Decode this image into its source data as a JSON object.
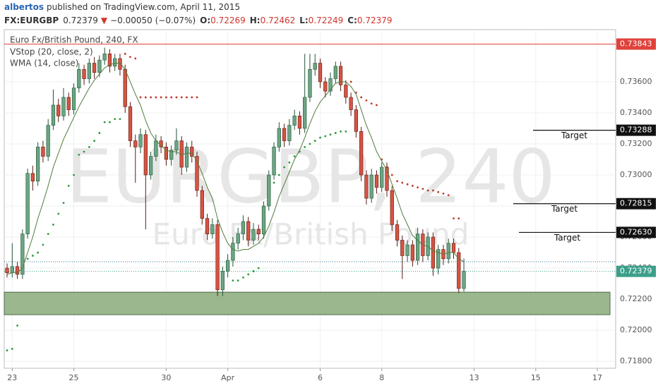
{
  "header": {
    "author": "albertos",
    "published": "published on TradingView.com, April 11, 2015",
    "symbol": "FX:EURGBP",
    "last": "0.72379",
    "arrow": "▼",
    "change": "−0.00050 (−0.07%)",
    "ohlc": [
      {
        "key": "O:",
        "value": "0.72269"
      },
      {
        "key": "H:",
        "value": "0.72462"
      },
      {
        "key": "L:",
        "value": "0.72249"
      },
      {
        "key": "C:",
        "value": "0.72379"
      }
    ]
  },
  "chart_data": {
    "type": "candlestick",
    "title": "Euro Fx/British Pound, 240, FX",
    "watermark": {
      "symbol": "EURGBP, 240",
      "description": "Euro Fx/British Pound"
    },
    "up_color": "#6ba583",
    "down_color": "#d75442",
    "grid": true,
    "ylim": [
      0.71755,
      0.73936
    ],
    "yticks": [
      {
        "value": 0.718,
        "label": "0.71800"
      },
      {
        "value": 0.72,
        "label": "0.72000"
      },
      {
        "value": 0.722,
        "label": "0.72200"
      },
      {
        "value": 0.724,
        "label": "0.72400"
      },
      {
        "value": 0.726,
        "label": "0.72600"
      },
      {
        "value": 0.728,
        "label": "0.72800"
      },
      {
        "value": 0.73,
        "label": "0.73000"
      },
      {
        "value": 0.732,
        "label": "0.73200"
      },
      {
        "value": 0.734,
        "label": "0.73400"
      },
      {
        "value": 0.736,
        "label": "0.73600"
      }
    ],
    "categories": [
      null,
      "23",
      null,
      null,
      null,
      null,
      null,
      null,
      null,
      null,
      null,
      null,
      null,
      "25",
      null,
      null,
      null,
      null,
      null,
      null,
      null,
      null,
      null,
      null,
      null,
      null,
      null,
      null,
      null,
      null,
      null,
      "30",
      null,
      null,
      null,
      null,
      null,
      null,
      null,
      null,
      null,
      null,
      null,
      "Apr",
      null,
      null,
      null,
      null,
      null,
      null,
      null,
      null,
      null,
      null,
      null,
      null,
      null,
      null,
      null,
      null,
      null,
      "6",
      null,
      null,
      null,
      null,
      null,
      null,
      null,
      null,
      null,
      null,
      null,
      "8",
      null,
      null,
      null,
      null,
      null,
      null,
      null,
      null,
      null,
      null,
      null,
      null,
      null,
      null,
      null,
      null,
      null,
      "13",
      null,
      null,
      null,
      null,
      null,
      null,
      null,
      null,
      null,
      null,
      null,
      "15",
      null,
      null,
      null,
      null,
      null,
      null,
      null,
      null,
      null,
      null,
      null,
      "17",
      null,
      null,
      null
    ],
    "open": [
      0.724,
      0.7237,
      0.7241,
      0.7236,
      0.7262,
      0.7301,
      0.7296,
      0.7318,
      0.7312,
      0.7332,
      0.7345,
      0.7338,
      0.735,
      0.7342,
      0.7356,
      0.7368,
      0.7362,
      0.7372,
      0.7366,
      0.7374,
      0.7378,
      0.737,
      0.7375,
      0.7368,
      0.7344,
      0.7322,
      0.7318,
      0.7326,
      0.73,
      0.7312,
      0.7322,
      0.7318,
      0.731,
      0.7316,
      0.7322,
      0.7305,
      0.7318,
      0.7312,
      0.729,
      0.7272,
      0.7262,
      0.7268,
      0.7226,
      0.7238,
      0.7245,
      0.7256,
      0.7262,
      0.727,
      0.7258,
      0.7265,
      0.7262,
      0.728,
      0.73,
      0.7318,
      0.733,
      0.7322,
      0.7332,
      0.7338,
      0.733,
      0.735,
      0.7368,
      0.7372,
      0.736,
      0.7354,
      0.7362,
      0.737,
      0.7358,
      0.735,
      0.7342,
      0.7328,
      0.73,
      0.7285,
      0.73,
      0.7292,
      0.7305,
      0.729,
      0.7268,
      0.7258,
      0.7248,
      0.7255,
      0.7245,
      0.7262,
      0.7248,
      0.726,
      0.724,
      0.7252,
      0.7246,
      0.7256,
      0.725,
      0.72269,
      null,
      null,
      null,
      null,
      null,
      null,
      null,
      null,
      null,
      null,
      null,
      null,
      null,
      null,
      null,
      null,
      null,
      null,
      null,
      null,
      null,
      null,
      null,
      null,
      null,
      null,
      null,
      null,
      null
    ],
    "high": [
      0.7243,
      0.7256,
      0.7244,
      0.7265,
      0.7304,
      0.7306,
      0.7321,
      0.7322,
      0.7336,
      0.7355,
      0.7349,
      0.7356,
      0.7353,
      0.7359,
      0.7372,
      0.7371,
      0.7375,
      0.7376,
      0.7377,
      0.7382,
      0.7381,
      0.7378,
      0.7378,
      0.7371,
      0.7347,
      0.7326,
      0.733,
      0.7329,
      0.7315,
      0.7326,
      0.7325,
      0.7321,
      0.7319,
      0.733,
      0.7325,
      0.7321,
      0.7322,
      0.7315,
      0.7293,
      0.7275,
      0.7272,
      0.7271,
      0.7241,
      0.7249,
      0.726,
      0.7266,
      0.7274,
      0.7273,
      0.7269,
      0.7268,
      0.7283,
      0.7303,
      0.7321,
      0.7334,
      0.7333,
      0.7336,
      0.7342,
      0.7341,
      0.7378,
      0.7378,
      0.7378,
      0.7375,
      0.7363,
      0.7366,
      0.7373,
      0.7373,
      0.7361,
      0.7353,
      0.7345,
      0.7331,
      0.7303,
      0.7304,
      0.7303,
      0.7308,
      0.7308,
      0.7293,
      0.7271,
      0.7261,
      0.7258,
      0.7258,
      0.7266,
      0.7265,
      0.7263,
      0.7263,
      0.7255,
      0.7255,
      0.7259,
      0.7259,
      0.7253,
      0.72462,
      null,
      null,
      null,
      null,
      null,
      null,
      null,
      null,
      null,
      null,
      null,
      null,
      null,
      null,
      null,
      null,
      null,
      null,
      null,
      null,
      null,
      null,
      null,
      null,
      null,
      null,
      null,
      null,
      null
    ],
    "low": [
      0.7234,
      0.7234,
      0.7233,
      0.7233,
      0.7259,
      0.729,
      0.7293,
      0.7308,
      0.7309,
      0.7329,
      0.7334,
      0.7335,
      0.7338,
      0.7339,
      0.7353,
      0.7358,
      0.7359,
      0.7362,
      0.7363,
      0.7371,
      0.7366,
      0.7367,
      0.7364,
      0.734,
      0.7318,
      0.7295,
      0.7314,
      0.7265,
      0.7297,
      0.7309,
      0.7314,
      0.7306,
      0.7306,
      0.7313,
      0.73,
      0.7302,
      0.7308,
      0.7286,
      0.7268,
      0.7258,
      0.7259,
      0.7222,
      0.7222,
      0.7234,
      0.7241,
      0.7252,
      0.7258,
      0.7254,
      0.7255,
      0.7258,
      0.7259,
      0.7277,
      0.7297,
      0.7315,
      0.7318,
      0.7319,
      0.7329,
      0.7326,
      0.7327,
      0.7347,
      0.7364,
      0.7356,
      0.735,
      0.7351,
      0.7359,
      0.7354,
      0.7346,
      0.7338,
      0.7324,
      0.7296,
      0.7281,
      0.7282,
      0.7288,
      0.7289,
      0.7286,
      0.7264,
      0.7254,
      0.7233,
      0.7244,
      0.7241,
      0.7242,
      0.7244,
      0.7245,
      0.7235,
      0.7236,
      0.7242,
      0.7243,
      0.7246,
      0.7224,
      0.72249,
      null,
      null,
      null,
      null,
      null,
      null,
      null,
      null,
      null,
      null,
      null,
      null,
      null,
      null,
      null,
      null,
      null,
      null,
      null,
      null,
      null,
      null,
      null,
      null,
      null,
      null,
      null,
      null,
      null
    ],
    "close": [
      0.7237,
      0.7241,
      0.7236,
      0.7262,
      0.7301,
      0.7296,
      0.7318,
      0.7312,
      0.7332,
      0.7345,
      0.7338,
      0.735,
      0.7342,
      0.7356,
      0.7368,
      0.7362,
      0.7372,
      0.7366,
      0.7374,
      0.7378,
      0.737,
      0.7375,
      0.7368,
      0.7344,
      0.7322,
      0.7318,
      0.7326,
      0.73,
      0.7312,
      0.7322,
      0.7318,
      0.731,
      0.7316,
      0.7322,
      0.7305,
      0.7318,
      0.7312,
      0.729,
      0.7272,
      0.7262,
      0.7268,
      0.7226,
      0.7238,
      0.7245,
      0.7256,
      0.7262,
      0.727,
      0.7258,
      0.7265,
      0.7262,
      0.728,
      0.73,
      0.7318,
      0.733,
      0.7322,
      0.7332,
      0.7338,
      0.733,
      0.735,
      0.7368,
      0.7372,
      0.736,
      0.7354,
      0.7362,
      0.737,
      0.7358,
      0.735,
      0.7342,
      0.7328,
      0.73,
      0.7285,
      0.73,
      0.7292,
      0.7305,
      0.729,
      0.7268,
      0.7258,
      0.7248,
      0.7255,
      0.7245,
      0.7262,
      0.7248,
      0.726,
      0.724,
      0.7252,
      0.7246,
      0.7256,
      0.725,
      0.72269,
      0.72379,
      null,
      null,
      null,
      null,
      null,
      null,
      null,
      null,
      null,
      null,
      null,
      null,
      null,
      null,
      null,
      null,
      null,
      null,
      null,
      null,
      null,
      null,
      null,
      null,
      null,
      null,
      null,
      null,
      null
    ],
    "wma": {
      "name": "WMA (14, close)",
      "color": "#4f7d3a",
      "values": [
        0.7236,
        0.7237,
        0.7237,
        0.724,
        0.725,
        0.726,
        0.7272,
        0.7282,
        0.7293,
        0.7305,
        0.7314,
        0.7323,
        0.733,
        0.7337,
        0.7344,
        0.735,
        0.7356,
        0.7361,
        0.7365,
        0.7369,
        0.7371,
        0.7372,
        0.7372,
        0.7368,
        0.736,
        0.7352,
        0.7345,
        0.7335,
        0.7327,
        0.7322,
        0.7319,
        0.7316,
        0.7315,
        0.7315,
        0.7313,
        0.7314,
        0.7314,
        0.7309,
        0.7301,
        0.7292,
        0.7285,
        0.7272,
        0.7263,
        0.7256,
        0.7252,
        0.7251,
        0.7252,
        0.7252,
        0.7254,
        0.7256,
        0.726,
        0.7267,
        0.7276,
        0.7286,
        0.7294,
        0.7302,
        0.731,
        0.7316,
        0.7324,
        0.7333,
        0.7341,
        0.7347,
        0.7351,
        0.7355,
        0.7359,
        0.736,
        0.736,
        0.7357,
        0.7352,
        0.7342,
        0.7332,
        0.7324,
        0.7315,
        0.7309,
        0.7303,
        0.7294,
        0.7285,
        0.7275,
        0.7268,
        0.7261,
        0.7258,
        0.7255,
        0.7254,
        0.7251,
        0.725,
        0.7249,
        0.725,
        0.725,
        0.7246,
        0.7244,
        null,
        null,
        null,
        null,
        null,
        null,
        null,
        null,
        null,
        null,
        null,
        null,
        null,
        null,
        null,
        null,
        null,
        null,
        null,
        null,
        null,
        null,
        null,
        null,
        null,
        null,
        null,
        null,
        null
      ]
    },
    "vstop": {
      "name": "VStop (20, close, 2)",
      "up_color": "#2e9b3a",
      "down_color": "#c0392b",
      "values": [
        0.7187,
        0.7188,
        0.7203,
        null,
        0.7246,
        0.7248,
        0.725,
        0.7255,
        0.7262,
        0.7268,
        0.7275,
        0.7282,
        0.7293,
        0.73,
        0.7313,
        0.7315,
        0.7318,
        0.7322,
        0.7327,
        0.7334,
        0.7334,
        0.7336,
        0.7336,
        0.7378,
        0.7376,
        0.7375,
        0.735,
        0.735,
        0.735,
        0.735,
        0.735,
        0.735,
        0.735,
        0.735,
        0.735,
        0.735,
        0.735,
        0.735,
        null,
        null,
        null,
        null,
        null,
        null,
        0.7232,
        0.7232,
        0.7234,
        0.7236,
        0.7238,
        0.724,
        null,
        0.729,
        0.7295,
        0.73,
        0.7305,
        0.7308,
        0.7312,
        0.7315,
        0.7318,
        0.732,
        0.7322,
        0.7324,
        0.7325,
        0.7326,
        0.7327,
        0.7328,
        0.7328,
        0.736,
        0.7353,
        0.735,
        0.7348,
        0.7346,
        0.7345,
        0.731,
        0.7305,
        0.73,
        0.7296,
        0.7295,
        0.7294,
        0.7293,
        0.7292,
        0.7291,
        0.729,
        0.729,
        0.7289,
        0.7288,
        0.7287,
        0.7272,
        0.7272,
        null,
        null,
        null,
        null,
        null,
        null,
        null,
        null,
        null,
        null,
        null,
        null,
        null,
        null,
        null,
        null,
        null,
        null,
        null,
        null,
        null,
        null,
        null,
        null,
        null,
        null,
        null,
        null,
        null,
        null
      ]
    },
    "support_zone": {
      "low": 0.721,
      "high": 0.72245,
      "color": "#8faf82"
    },
    "price_lines": [
      {
        "value": 0.73843,
        "label": "0.73843",
        "color": "#e0413a",
        "style": "solid"
      },
      {
        "value": 0.72441,
        "color": "#2f6f8f",
        "style": "dotted"
      },
      {
        "value": 0.72379,
        "label": "0.72379",
        "color": "#3c9f8a",
        "style": "dotted"
      }
    ],
    "targets": [
      {
        "value": 0.73288,
        "label": "0.73288",
        "text": "Target"
      },
      {
        "value": 0.72815,
        "label": "0.72815",
        "text": "Target"
      },
      {
        "value": 0.7263,
        "label": "0.72630",
        "text": "Target"
      }
    ]
  }
}
